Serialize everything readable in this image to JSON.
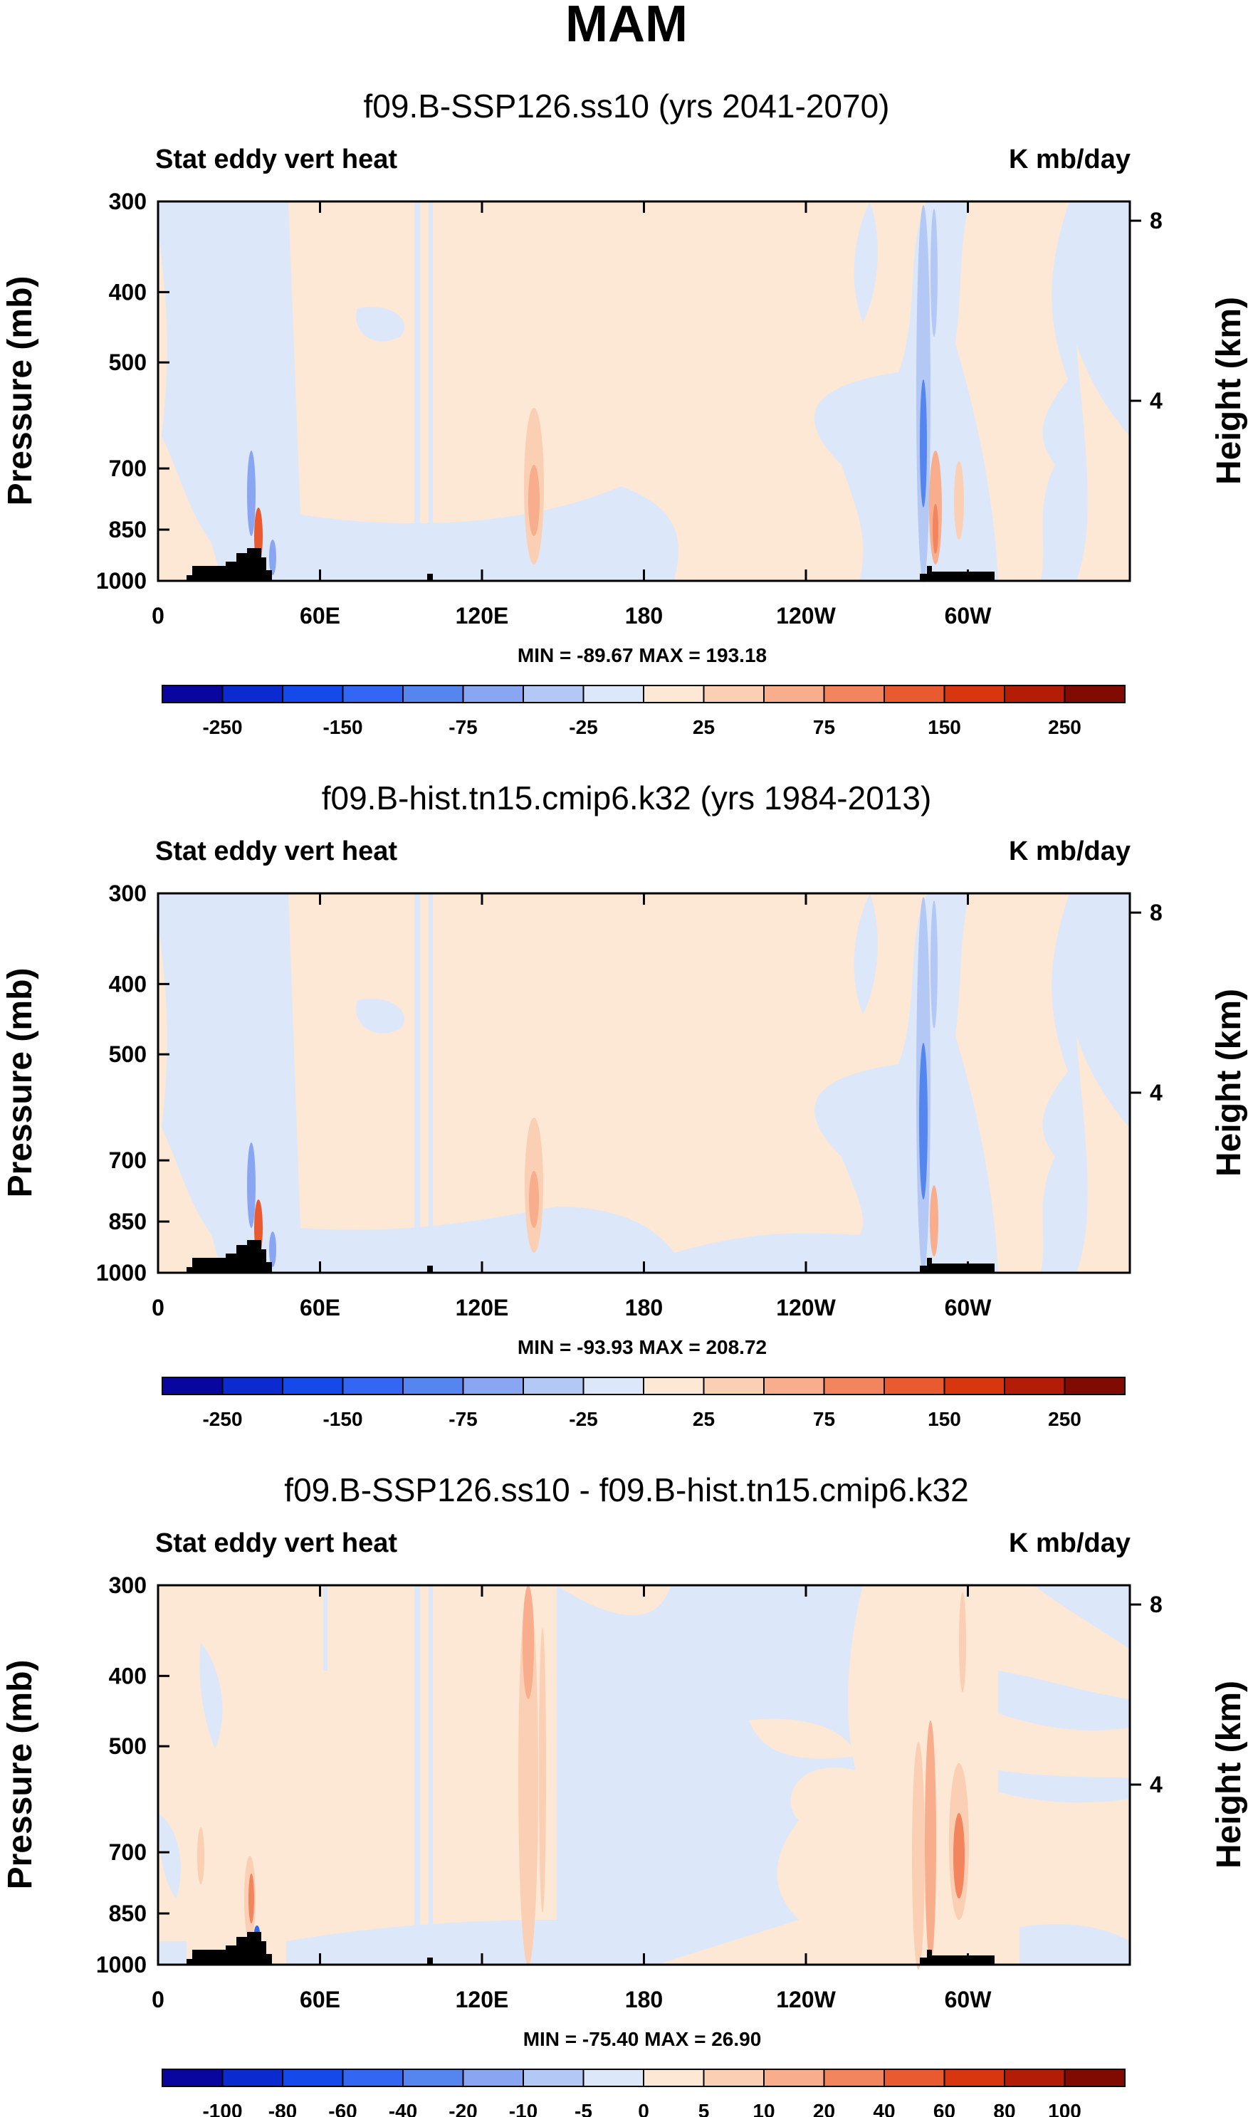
{
  "title": "MAM",
  "colorbar_colors": [
    "#08069e",
    "#0b2bd0",
    "#1649ea",
    "#3366f2",
    "#5585ee",
    "#8aa6f2",
    "#b4c8f5",
    "#dce8fa",
    "#fde7d5",
    "#fbcfb3",
    "#f8ad8c",
    "#f2845e",
    "#e95a30",
    "#d8360f",
    "#b31c06",
    "#800b03"
  ],
  "chart_data": [
    {
      "type": "heatmap",
      "title": "f09.B-SSP126.ss10 (yrs 2041-2070)",
      "left_label": "Stat eddy vert heat",
      "right_label": "K mb/day",
      "ylabel": "Pressure (mb)",
      "y2label": "Height (km)",
      "xlabel": "",
      "x_ticks": [
        "0",
        "60E",
        "120E",
        "180",
        "120W",
        "60W"
      ],
      "x_tick_values": [
        0,
        60,
        120,
        180,
        240,
        300
      ],
      "xlim": [
        0,
        360
      ],
      "y_ticks": [
        "300",
        "400",
        "500",
        "700",
        "850",
        "1000"
      ],
      "y_tick_values": [
        300,
        400,
        500,
        700,
        850,
        1000
      ],
      "ylim": [
        1000,
        300
      ],
      "y2_ticks": [
        "8",
        "4"
      ],
      "y2_tick_values": [
        8,
        4
      ],
      "stats": "MIN = -89.67   MAX = 193.18",
      "colorbar_labels": [
        "-250",
        "-150",
        "-75",
        "-25",
        "25",
        "75",
        "150",
        "250"
      ]
    },
    {
      "type": "heatmap",
      "title": "f09.B-hist.tn15.cmip6.k32 (yrs 1984-2013)",
      "left_label": "Stat eddy vert heat",
      "right_label": "K mb/day",
      "ylabel": "Pressure (mb)",
      "y2label": "Height (km)",
      "xlabel": "",
      "x_ticks": [
        "0",
        "60E",
        "120E",
        "180",
        "120W",
        "60W"
      ],
      "x_tick_values": [
        0,
        60,
        120,
        180,
        240,
        300
      ],
      "xlim": [
        0,
        360
      ],
      "y_ticks": [
        "300",
        "400",
        "500",
        "700",
        "850",
        "1000"
      ],
      "y_tick_values": [
        300,
        400,
        500,
        700,
        850,
        1000
      ],
      "ylim": [
        1000,
        300
      ],
      "y2_ticks": [
        "8",
        "4"
      ],
      "y2_tick_values": [
        8,
        4
      ],
      "stats": "MIN = -93.93   MAX = 208.72",
      "colorbar_labels": [
        "-250",
        "-150",
        "-75",
        "-25",
        "25",
        "75",
        "150",
        "250"
      ]
    },
    {
      "type": "heatmap",
      "title": "f09.B-SSP126.ss10 - f09.B-hist.tn15.cmip6.k32",
      "left_label": "Stat eddy vert heat",
      "right_label": "K mb/day",
      "ylabel": "Pressure (mb)",
      "y2label": "Height (km)",
      "xlabel": "",
      "x_ticks": [
        "0",
        "60E",
        "120E",
        "180",
        "120W",
        "60W"
      ],
      "x_tick_values": [
        0,
        60,
        120,
        180,
        240,
        300
      ],
      "xlim": [
        0,
        360
      ],
      "y_ticks": [
        "300",
        "400",
        "500",
        "700",
        "850",
        "1000"
      ],
      "y_tick_values": [
        300,
        400,
        500,
        700,
        850,
        1000
      ],
      "ylim": [
        1000,
        300
      ],
      "y2_ticks": [
        "8",
        "4"
      ],
      "y2_tick_values": [
        8,
        4
      ],
      "stats": "MIN = -75.40   MAX =  26.90",
      "colorbar_labels": [
        "-100",
        "-80",
        "-60",
        "-40",
        "-20",
        "-10",
        "-5",
        "0",
        "5",
        "10",
        "20",
        "40",
        "60",
        "80",
        "100"
      ]
    }
  ]
}
